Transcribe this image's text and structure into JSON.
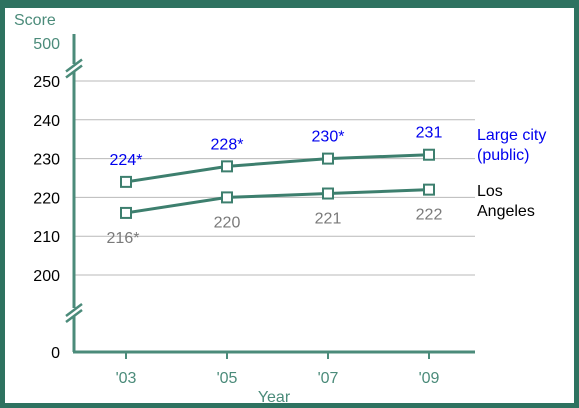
{
  "chart_data": {
    "type": "line",
    "ylabel": "Score",
    "xlabel": "Year",
    "categories": [
      "'03",
      "'05",
      "'07",
      "'09"
    ],
    "y_ticks": [
      200,
      210,
      220,
      230,
      240,
      250
    ],
    "y_break_top_label": "500",
    "y_break_bottom_label": "0",
    "ylim": [
      200,
      250
    ],
    "axis_break": true,
    "grid": true,
    "series": [
      {
        "name_lines": [
          "Large city",
          "(public)"
        ],
        "values": [
          224,
          228,
          230,
          231
        ],
        "labels": [
          "224*",
          "228*",
          "230*",
          "231"
        ],
        "label_color": "#0000ee",
        "line_color": "#3d7f6e"
      },
      {
        "name_lines": [
          "Los",
          "Angeles"
        ],
        "values": [
          216,
          220,
          221,
          222
        ],
        "labels": [
          "216*",
          "220",
          "221",
          "222"
        ],
        "label_color": "#7a7a7a",
        "line_color": "#3d7f6e"
      }
    ],
    "colors": {
      "frame": "#2e7260",
      "axis": "#4b8b7a",
      "axis_text": "#4b8b7a",
      "tick_text": "#000000",
      "grid": "#b9b9b9",
      "legend_text": "#000000"
    }
  }
}
